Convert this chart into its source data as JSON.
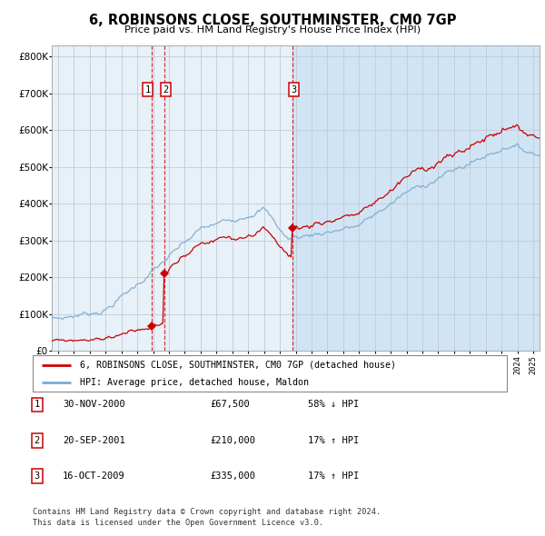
{
  "title": "6, ROBINSONS CLOSE, SOUTHMINSTER, CM0 7GP",
  "subtitle": "Price paid vs. HM Land Registry's House Price Index (HPI)",
  "legend_label_red": "6, ROBINSONS CLOSE, SOUTHMINSTER, CM0 7GP (detached house)",
  "legend_label_blue": "HPI: Average price, detached house, Maldon",
  "footer1": "Contains HM Land Registry data © Crown copyright and database right 2024.",
  "footer2": "This data is licensed under the Open Government Licence v3.0.",
  "table": [
    {
      "num": "1",
      "date": "30-NOV-2000",
      "price": "£67,500",
      "hpi": "58% ↓ HPI"
    },
    {
      "num": "2",
      "date": "20-SEP-2001",
      "price": "£210,000",
      "hpi": "17% ↑ HPI"
    },
    {
      "num": "3",
      "date": "16-OCT-2009",
      "price": "£335,000",
      "hpi": "17% ↑ HPI"
    }
  ],
  "sale_dates_dec": [
    2000.917,
    2001.722,
    2009.792
  ],
  "sale_prices": [
    67500,
    210000,
    335000
  ],
  "vline_dates": [
    2000.917,
    2001.722,
    2009.792
  ],
  "shade_start": 2009.792,
  "red_color": "#cc0000",
  "blue_color": "#7aaacf",
  "background_plot": "#e8f0f8",
  "background_shade": "#d0e4f4",
  "grid_color": "#c0ccd8",
  "vline_color": "#cc0000",
  "ylim": [
    0,
    830000
  ],
  "xlim_start": 1994.6,
  "xlim_end": 2025.4
}
